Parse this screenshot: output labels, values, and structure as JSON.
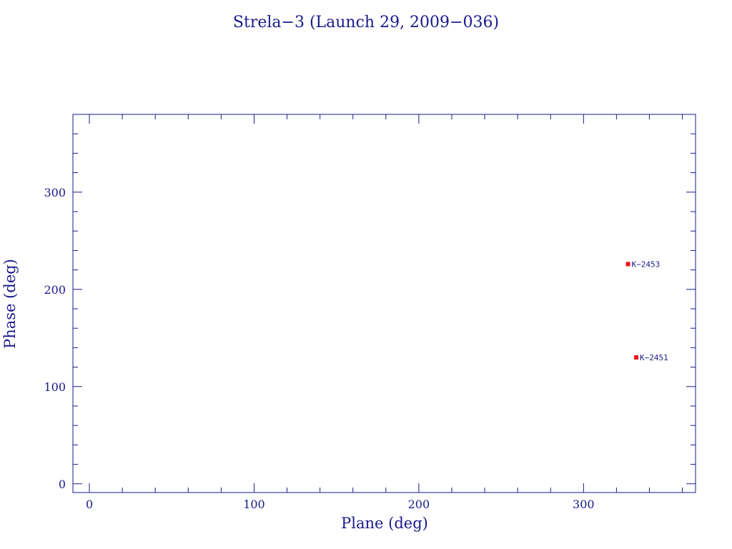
{
  "chart_data": {
    "type": "scatter",
    "title": "Strela−3 (Launch 29, 2009−036)",
    "xlabel": "Plane (deg)",
    "ylabel": "Phase (deg)",
    "xlim": [
      -10,
      368
    ],
    "ylim": [
      -9,
      380
    ],
    "x_ticks": [
      0,
      100,
      200,
      300
    ],
    "y_ticks": [
      0,
      100,
      200,
      300
    ],
    "x_minor_step": 20,
    "y_minor_step": 20,
    "grid": false,
    "points": [
      {
        "label": "K−2453",
        "x": 327,
        "y": 226
      },
      {
        "label": "K−2451",
        "x": 332,
        "y": 130
      }
    ],
    "colors": {
      "axes": "#1a1a8c",
      "marker": "#e8141e"
    }
  }
}
